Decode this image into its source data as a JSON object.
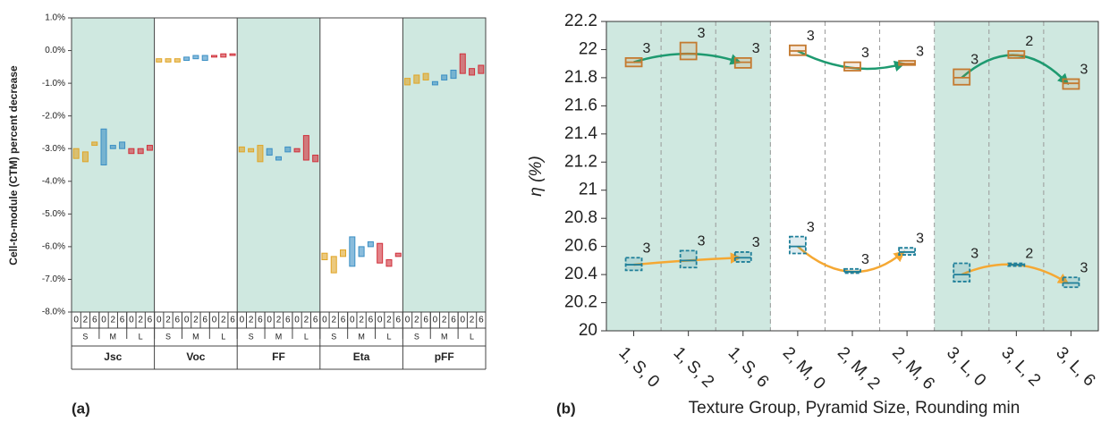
{
  "chart_data": [
    {
      "type": "box",
      "y_label": "Cell-to-module (CTM) percent decrease",
      "panel_label": "(a)",
      "groups": [
        "Jsc",
        "Voc",
        "FF",
        "Eta",
        "pFF"
      ],
      "shaded": [
        true,
        false,
        true,
        false,
        true
      ],
      "categories": [
        "0",
        "2",
        "6"
      ],
      "ylim": [
        -8,
        1
      ],
      "yticks": [
        {
          "value": 1,
          "label": "1.0%"
        },
        {
          "value": 0,
          "label": "0.0%"
        },
        {
          "value": -1,
          "label": "-1.0%"
        },
        {
          "value": -2,
          "label": "-2.0%"
        },
        {
          "value": -3,
          "label": "-3.0%"
        },
        {
          "value": -4,
          "label": "-4.0%"
        },
        {
          "value": -5,
          "label": "-5.0%"
        },
        {
          "value": -6,
          "label": "-6.0%"
        },
        {
          "value": -7,
          "label": "-7.0%"
        },
        {
          "value": -8,
          "label": "-8.0%"
        }
      ],
      "series": [
        {
          "name": "S",
          "color": "#e0a526",
          "low": [
            -3.3,
            -3.4,
            -2.9,
            -0.35,
            -0.35,
            -0.35,
            -3.1,
            -3.1,
            -3.4,
            -6.4,
            -6.8,
            -6.3,
            -1.05,
            -1.0,
            -0.9
          ],
          "high": [
            -3.0,
            -3.1,
            -2.8,
            -0.25,
            -0.25,
            -0.25,
            -2.95,
            -3.0,
            -2.9,
            -6.2,
            -6.3,
            -6.1,
            -0.85,
            -0.75,
            -0.7
          ]
        },
        {
          "name": "M",
          "color": "#3b8fc4",
          "low": [
            -3.5,
            -3.0,
            -3.0,
            -0.3,
            -0.25,
            -0.3,
            -3.2,
            -3.35,
            -3.1,
            -6.6,
            -6.3,
            -6.0,
            -1.05,
            -0.9,
            -0.85
          ],
          "high": [
            -2.4,
            -2.9,
            -2.8,
            -0.2,
            -0.15,
            -0.15,
            -3.0,
            -3.25,
            -2.95,
            -5.7,
            -6.0,
            -5.85,
            -0.95,
            -0.75,
            -0.6
          ]
        },
        {
          "name": "L",
          "color": "#d0303a",
          "low": [
            -3.15,
            -3.15,
            -3.05,
            -0.2,
            -0.2,
            -0.15,
            -3.1,
            -3.35,
            -3.4,
            -6.5,
            -6.6,
            -6.3,
            -0.7,
            -0.75,
            -0.7
          ],
          "high": [
            -3.0,
            -3.0,
            -2.9,
            -0.15,
            -0.1,
            -0.1,
            -3.0,
            -2.6,
            -3.2,
            -5.9,
            -6.4,
            -6.2,
            -0.1,
            -0.55,
            -0.45
          ]
        }
      ]
    },
    {
      "type": "box",
      "x_label": "Texture Group, Pyramid Size, Rounding min",
      "y_label": "η (%)",
      "panel_label": "(b)",
      "categories": [
        "1, S, 0",
        "1, S, 2",
        "1, S, 6",
        "2, M, 0",
        "2, M, 2",
        "2, M, 6",
        "3, L, 0",
        "3, L, 2",
        "3, L, 6"
      ],
      "shaded": [
        true,
        true,
        true,
        false,
        false,
        false,
        true,
        true,
        true
      ],
      "ylim": [
        20,
        22.2
      ],
      "yticks": [
        20,
        20.2,
        20.4,
        20.6,
        20.8,
        21,
        21.2,
        21.4,
        21.6,
        21.8,
        22,
        22.2
      ],
      "series": [
        {
          "color": "#c47a30",
          "arrow_color": "#1e9a70",
          "low": [
            21.88,
            21.93,
            21.87,
            21.96,
            21.85,
            21.89,
            21.75,
            21.94,
            21.72
          ],
          "median": [
            21.91,
            21.97,
            21.91,
            21.99,
            21.87,
            21.9,
            21.8,
            21.96,
            21.76
          ],
          "high": [
            21.94,
            22.05,
            21.94,
            22.03,
            21.91,
            21.92,
            21.86,
            21.99,
            21.79
          ],
          "counts": [
            3,
            3,
            3,
            3,
            3,
            3,
            3,
            2,
            3
          ]
        },
        {
          "color": "#1f7f99",
          "arrow_color": "#f5a833",
          "low": [
            20.43,
            20.45,
            20.49,
            20.55,
            20.41,
            20.54,
            20.35,
            20.46,
            20.31
          ],
          "median": [
            20.47,
            20.5,
            20.52,
            20.6,
            20.42,
            20.56,
            20.4,
            20.47,
            20.34
          ],
          "high": [
            20.52,
            20.57,
            20.56,
            20.67,
            20.44,
            20.59,
            20.48,
            20.48,
            20.38
          ],
          "counts": [
            3,
            3,
            3,
            3,
            3,
            3,
            3,
            2,
            3
          ]
        }
      ]
    }
  ]
}
